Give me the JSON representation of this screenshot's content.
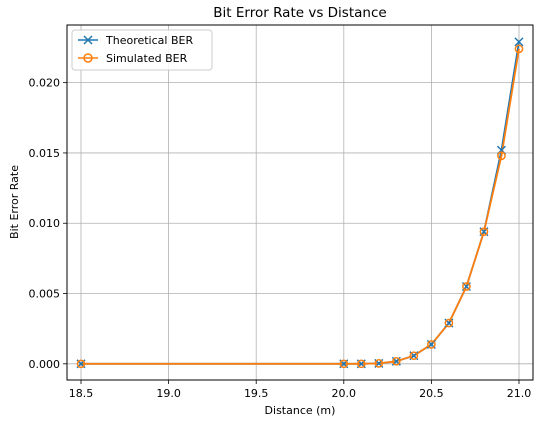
{
  "chart_data": {
    "type": "line",
    "title": "Bit Error Rate vs Distance",
    "xlabel": "Distance (m)",
    "ylabel": "Bit Error Rate",
    "xlim": [
      18.42,
      21.08
    ],
    "ylim": [
      -0.00115,
      0.0241
    ],
    "x_ticks": [
      "18.5",
      "19.0",
      "19.5",
      "20.0",
      "20.5",
      "21.0"
    ],
    "y_ticks": [
      "0.000",
      "0.005",
      "0.010",
      "0.015",
      "0.020"
    ],
    "grid": true,
    "legend_position": "top-left",
    "x": [
      18.5,
      20.0,
      20.1,
      20.2,
      20.3,
      20.4,
      20.5,
      20.6,
      20.7,
      20.8,
      20.9,
      21.0
    ],
    "series": [
      {
        "name": "Theoretical BER",
        "marker": "x",
        "color": "#1f77b4",
        "values": [
          0.0,
          0.0,
          0.0,
          3e-05,
          0.00018,
          0.00058,
          0.00138,
          0.0029,
          0.0055,
          0.0094,
          0.0152,
          0.0229
        ]
      },
      {
        "name": "Simulated BER",
        "marker": "o",
        "color": "#ff7f0e",
        "values": [
          0.0,
          0.0,
          0.0,
          3e-05,
          0.00018,
          0.00058,
          0.00138,
          0.0029,
          0.0055,
          0.0094,
          0.0148,
          0.0224
        ]
      }
    ]
  }
}
